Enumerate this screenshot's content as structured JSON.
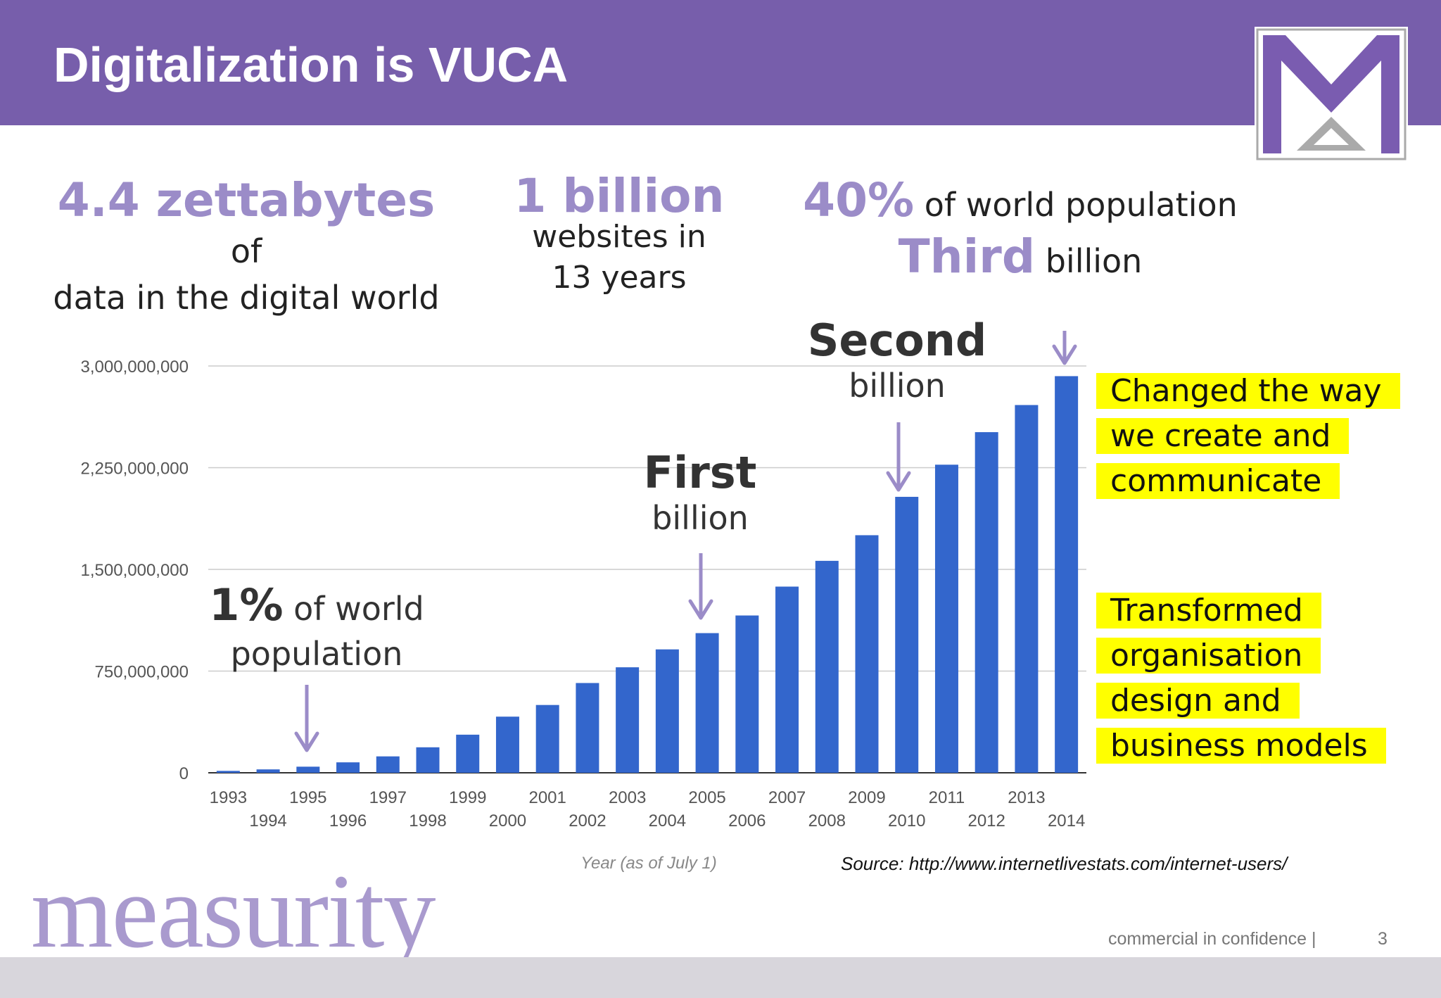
{
  "slide": {
    "title": "Digitalization is VUCA",
    "page_number": "3",
    "footer_text": "commercial in confidence |",
    "brand_logo_text": "measurity",
    "brand_color": "#775eab",
    "highlight_color": "#9b8cc8",
    "box_highlight_color": "#ffff00",
    "logo_icon": "envelope-m-logo-icon"
  },
  "stats": {
    "zettabytes_value": "4.4 zettabytes",
    "zettabytes_suffix": "of",
    "zettabytes_line2": "data in the digital world",
    "websites_value": "1 billion",
    "websites_line1": "websites in",
    "websites_line2": "13 years",
    "population_value": "40%",
    "population_suffix": "of world population",
    "third_value": "Third",
    "third_suffix": "billion"
  },
  "annotations": {
    "one_percent_value": "1%",
    "one_percent_suffix": "of world",
    "one_percent_line2": "population",
    "first_title": "First",
    "first_sub": "billion",
    "second_title": "Second",
    "second_sub": "billion"
  },
  "callouts": {
    "box1": "Changed the way we create and communicate",
    "box2": "Transformed organisation design and business models"
  },
  "source": "Source: http://www.internetlivestats.com/internet-users/",
  "chart_data": {
    "type": "bar",
    "xlabel": "Year (as of July 1)",
    "categories": [
      "1993",
      "1994",
      "1995",
      "1996",
      "1997",
      "1998",
      "1999",
      "2000",
      "2001",
      "2002",
      "2003",
      "2004",
      "2005",
      "2006",
      "2007",
      "2008",
      "2009",
      "2010",
      "2011",
      "2012",
      "2013",
      "2014"
    ],
    "values": [
      14000000,
      25000000,
      45000000,
      77000000,
      121000000,
      188000000,
      281000000,
      414000000,
      500000000,
      662000000,
      778000000,
      910000000,
      1030000000,
      1160000000,
      1373000000,
      1563000000,
      1752000000,
      2035000000,
      2272000000,
      2512000000,
      2712000000,
      2925000000
    ],
    "ylim": [
      0,
      3000000000
    ],
    "yticks": [
      0,
      750000000,
      1500000000,
      2250000000,
      3000000000
    ],
    "ytick_labels": [
      "0",
      "750,000,000",
      "1,500,000,000",
      "2,250,000,000",
      "3,000,000,000"
    ],
    "grid": true,
    "bar_color": "#3366cc"
  }
}
